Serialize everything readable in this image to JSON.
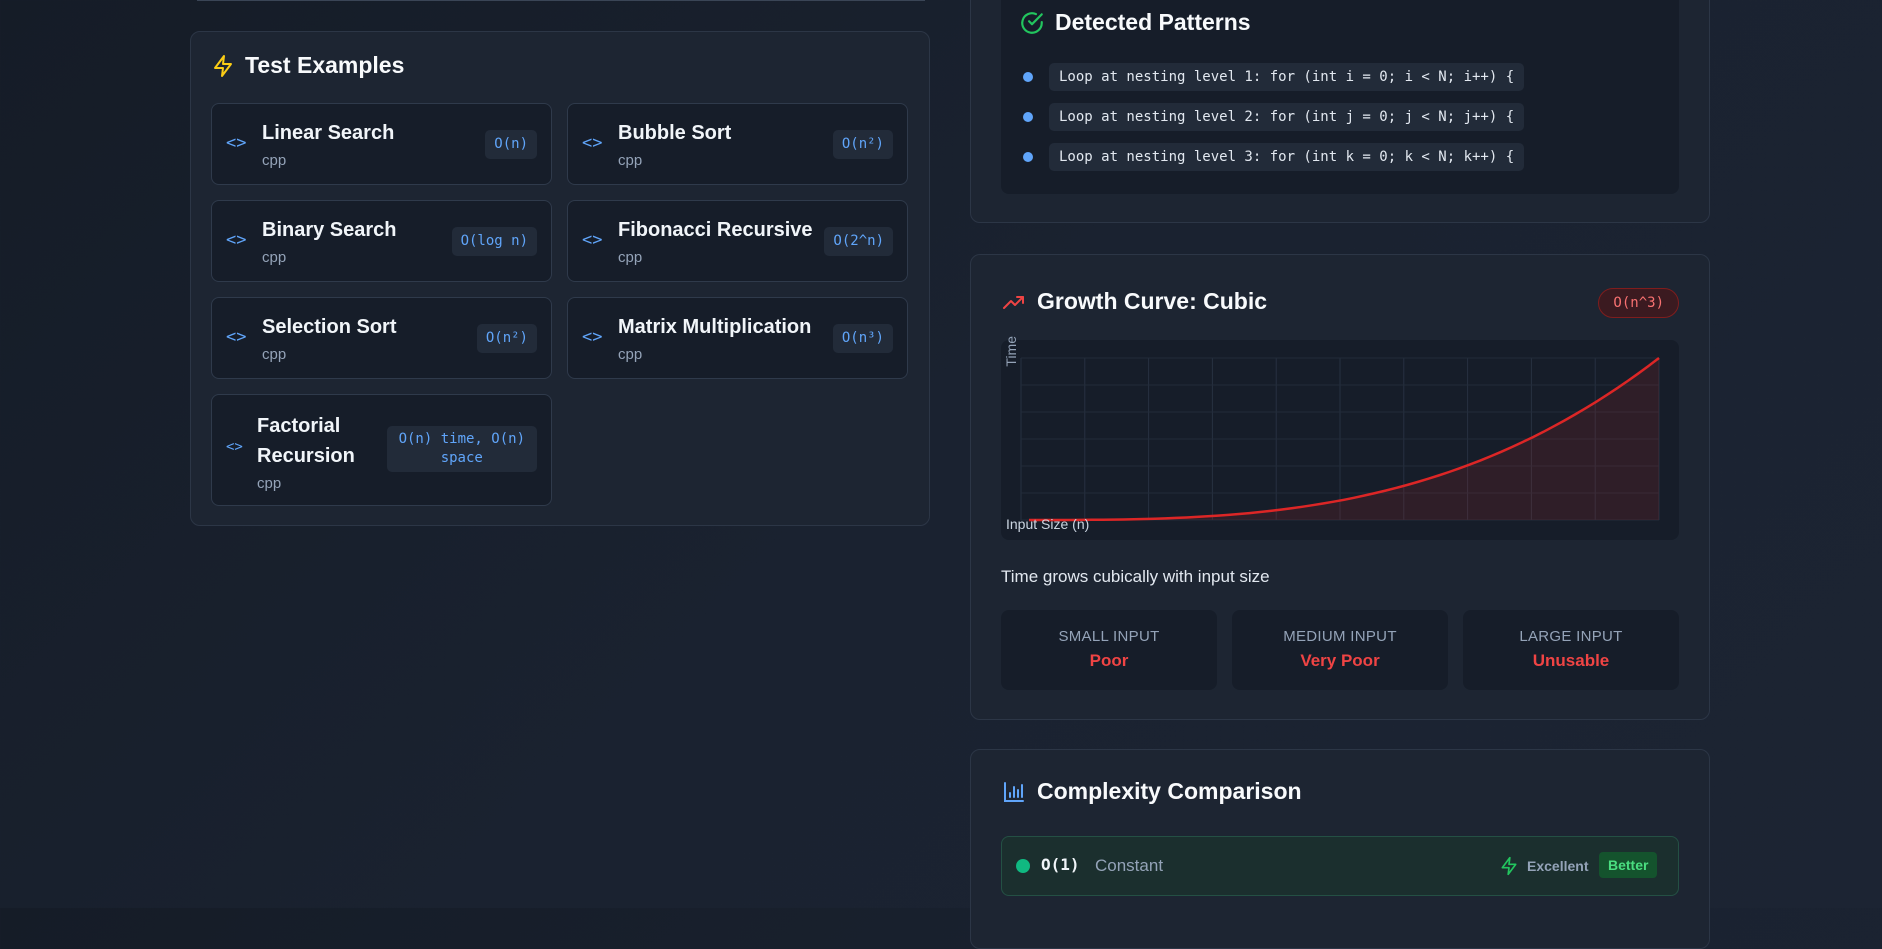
{
  "test_examples": {
    "title": "Test Examples",
    "items": [
      {
        "name": "Linear Search",
        "lang": "cpp",
        "complexity": "O(n)"
      },
      {
        "name": "Bubble Sort",
        "lang": "cpp",
        "complexity": "O(n²)"
      },
      {
        "name": "Binary Search",
        "lang": "cpp",
        "complexity": "O(log n)"
      },
      {
        "name": "Fibonacci Recursive",
        "lang": "cpp",
        "complexity": "O(2^n)"
      },
      {
        "name": "Selection Sort",
        "lang": "cpp",
        "complexity": "O(n²)"
      },
      {
        "name": "Matrix Multiplication",
        "lang": "cpp",
        "complexity": "O(n³)"
      },
      {
        "name_line1": "Factorial",
        "name_line2": "Recursion",
        "lang": "cpp",
        "complexity_line1": "O(n) time, O(n)",
        "complexity_line2": "space"
      }
    ]
  },
  "detected_patterns": {
    "title": "Detected Patterns",
    "items": [
      "Loop at nesting level 1: for (int i = 0; i < N; i++) {",
      "Loop at nesting level 2: for (int j = 0; j < N; j++) {",
      "Loop at nesting level 3: for (int k = 0; k < N; k++) {"
    ]
  },
  "growth_curve": {
    "title": "Growth Curve: Cubic",
    "badge": "O(n^3)",
    "description": "Time grows cubically with input size",
    "performance": [
      {
        "label": "SMALL INPUT",
        "value": "Poor"
      },
      {
        "label": "MEDIUM INPUT",
        "value": "Very Poor"
      },
      {
        "label": "LARGE INPUT",
        "value": "Unusable"
      }
    ],
    "colors": {
      "curve": "#dc2626",
      "accent": "#ef4444"
    }
  },
  "chart_data": {
    "type": "area",
    "title": "",
    "xlabel": "Input Size (n)",
    "ylabel": "Time",
    "function": "n^3",
    "x": [
      0,
      0.1,
      0.2,
      0.3,
      0.4,
      0.5,
      0.6,
      0.7,
      0.8,
      0.9,
      1.0
    ],
    "series": [
      {
        "values": [
          0,
          0.001,
          0.008,
          0.027,
          0.064,
          0.125,
          0.216,
          0.343,
          0.512,
          0.729,
          1.0
        ]
      }
    ],
    "xlim": [
      0,
      1
    ],
    "ylim": [
      0,
      1
    ],
    "grid": true
  },
  "complexity_comparison": {
    "title": "Complexity Comparison",
    "rows": [
      {
        "notation": "O(1)",
        "name": "Constant",
        "rating": "Excellent",
        "verdict": "Better",
        "color": "#10b981"
      }
    ]
  }
}
